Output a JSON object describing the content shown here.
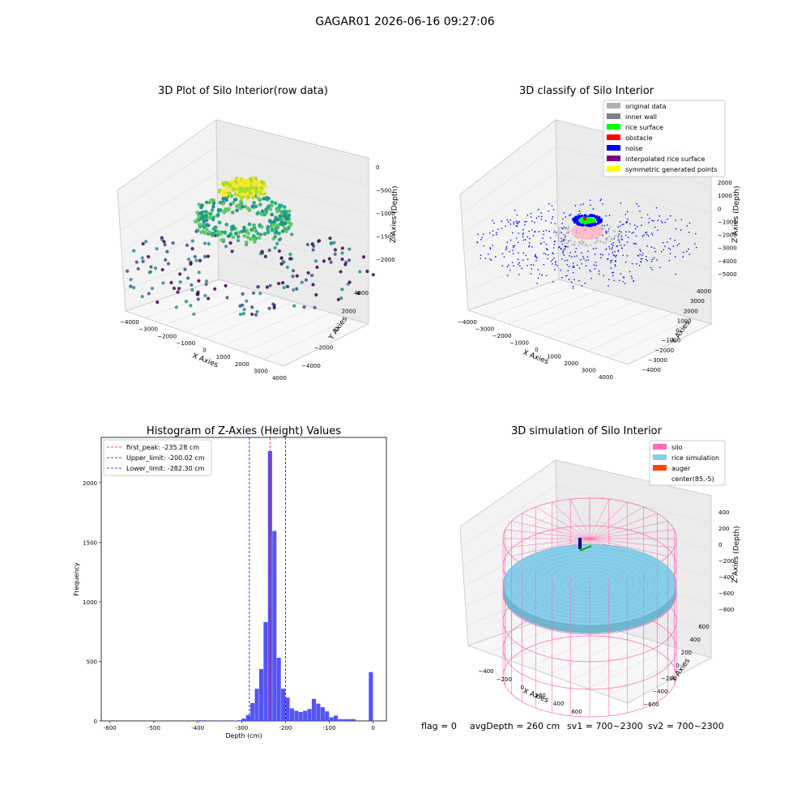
{
  "figure_title": "GAGAR01 2026-06-16 09:27:06",
  "status_line": {
    "flag": "flag = 0",
    "avg_depth": "avgDepth = 260 cm",
    "sv1": "sv1 = 700~2300",
    "sv2": "sv2 = 700~2300"
  },
  "colors": {
    "hist_bar": "#4b4bf5",
    "first_peak_line": "#ff0000",
    "limit_lines": "#0000ff",
    "silo": "#ff69b4",
    "rice_simulation": "#87ceeb",
    "auger": "#ff4500",
    "original_data": "#b0b0b0",
    "inner_wall": "#808080",
    "rice_surface": "#00ff00",
    "obstacle": "#ff0000",
    "noise": "#0000ff",
    "interpolated_rice_surface": "#800080",
    "symmetric_generated_points": "#ffff00"
  },
  "chart_data": [
    {
      "type": "scatter",
      "projection": "3d",
      "title": "3D Plot of Silo Interior(row data)",
      "xlabel": "X Axies",
      "ylabel": "Y Axies",
      "zlabel": "Z Axies (Depth)",
      "xticks": [
        "−4000",
        "−3000",
        "−2000",
        "−1000",
        "0",
        "1000",
        "2000",
        "3000",
        "4000"
      ],
      "yticks": [
        "−4000",
        "−2000",
        "0",
        "2000",
        "4000"
      ],
      "zticks": [
        "0",
        "−500",
        "−1000",
        "−1500",
        "−2000"
      ],
      "xlim": [
        -4000,
        4000
      ],
      "ylim": [
        -4000,
        4000
      ],
      "zlim": [
        -2300,
        0
      ],
      "colormap": "viridis"
    },
    {
      "type": "scatter",
      "projection": "3d",
      "title": "3D classify of Silo Interior",
      "xlabel": "X Axies",
      "ylabel": "Y Axies",
      "zlabel": "Z Axies (Depth)",
      "xticks": [
        "−4000",
        "−3000",
        "−2000",
        "−1000",
        "0",
        "1000",
        "2000",
        "3000",
        "4000"
      ],
      "yticks": [
        "−4000",
        "−3000",
        "−2000",
        "−1000",
        "0",
        "1000",
        "2000",
        "3000",
        "4000"
      ],
      "zticks": [
        "2000",
        "1000",
        "0",
        "−1000",
        "−2000",
        "−3000",
        "−4000",
        "−5000"
      ],
      "legend": [
        "original data",
        "inner wall",
        "rice surface",
        "obstacle",
        "noise",
        "interpolated rice surface",
        "symmetric generated points"
      ],
      "legend_position": "top-right"
    },
    {
      "type": "bar",
      "title": "Histogram of Z-Axies (Height) Values",
      "xlabel": "Depth (cm)",
      "ylabel": "Frequency",
      "xlim": [
        -620,
        30
      ],
      "ylim": [
        0,
        2380
      ],
      "xticks": [
        -600,
        -500,
        -400,
        -300,
        -200,
        -100,
        0
      ],
      "yticks": [
        0,
        500,
        1000,
        1500,
        2000
      ],
      "bin_width": 10,
      "bins": [
        {
          "x": -400,
          "v": 5
        },
        {
          "x": -390,
          "v": 5
        },
        {
          "x": -350,
          "v": 4
        },
        {
          "x": -320,
          "v": 3
        },
        {
          "x": -310,
          "v": 5
        },
        {
          "x": -300,
          "v": 20
        },
        {
          "x": -290,
          "v": 50
        },
        {
          "x": -280,
          "v": 150
        },
        {
          "x": -270,
          "v": 270
        },
        {
          "x": -260,
          "v": 435
        },
        {
          "x": -250,
          "v": 830
        },
        {
          "x": -240,
          "v": 2265
        },
        {
          "x": -230,
          "v": 1595
        },
        {
          "x": -220,
          "v": 530
        },
        {
          "x": -210,
          "v": 270
        },
        {
          "x": -200,
          "v": 195
        },
        {
          "x": -190,
          "v": 105
        },
        {
          "x": -180,
          "v": 85
        },
        {
          "x": -170,
          "v": 75
        },
        {
          "x": -160,
          "v": 85
        },
        {
          "x": -150,
          "v": 100
        },
        {
          "x": -140,
          "v": 185
        },
        {
          "x": -130,
          "v": 145
        },
        {
          "x": -120,
          "v": 115
        },
        {
          "x": -110,
          "v": 80
        },
        {
          "x": -100,
          "v": 30
        },
        {
          "x": -90,
          "v": 45
        },
        {
          "x": -80,
          "v": 15
        },
        {
          "x": -70,
          "v": 15
        },
        {
          "x": -60,
          "v": 15
        },
        {
          "x": -50,
          "v": 15
        },
        {
          "x": -10,
          "v": 410
        }
      ],
      "vlines": [
        {
          "label": "first_peak: -235.28 cm",
          "x": -235.28,
          "style": "first_peak"
        },
        {
          "label": "Upper_limit: -200.02 cm",
          "x": -200.02,
          "style": "limit"
        },
        {
          "label": "Lower_limit: -282.30 cm",
          "x": -282.3,
          "style": "limit"
        }
      ],
      "legend_position": "top-left"
    },
    {
      "type": "surface",
      "projection": "3d",
      "title": "3D simulation of Silo Interior",
      "xlabel": "X Axies",
      "ylabel": "Y Axies",
      "zlabel": "Z Axies (Depth)",
      "xticks": [
        "−400",
        "−200",
        "0",
        "200",
        "400",
        "600"
      ],
      "yticks": [
        "−600",
        "−400",
        "−200",
        "0",
        "200",
        "400",
        "600"
      ],
      "zticks": [
        "400",
        "200",
        "0",
        "−200",
        "−400",
        "−600",
        "−800"
      ],
      "legend": [
        "silo",
        "rice simulation",
        "auger",
        "center(85,-5)"
      ],
      "legend_position": "top-right"
    }
  ]
}
